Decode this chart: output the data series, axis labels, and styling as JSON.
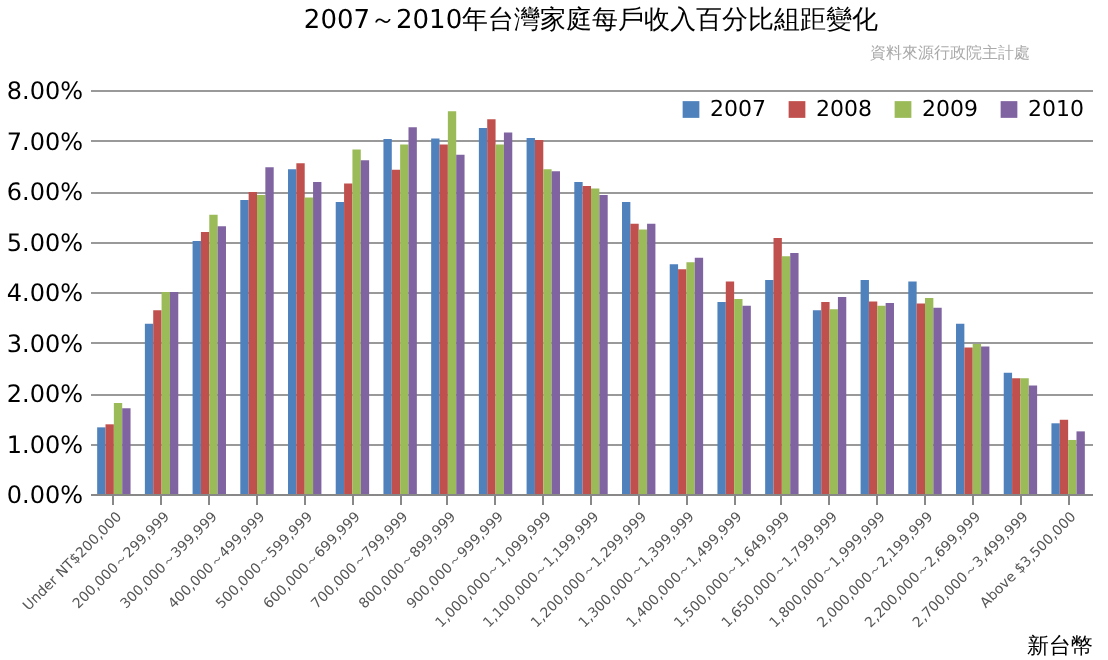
{
  "chart_data": {
    "type": "bar",
    "title": "2007～2010年台灣家庭每戶收入百分比組距變化",
    "xlabel": "新台幣",
    "annotations": [
      "資料來源行政院主計處"
    ],
    "categories": [
      "Under NT$200,000",
      "200,000～299,999",
      "300,000～399,999",
      "400,000～499,999",
      "500,000～599,999",
      "600,000～699,999",
      "700,000～799,999",
      "800,000～899,999",
      "900,000～999,999",
      "1,000,000～1,099,999",
      "1,100,000～1,199,999",
      "1,200,000～1,299,999",
      "1,300,000～1,399,999",
      "1,400,000～1,499,999",
      "1,500,000～1,649,999",
      "1,650,000～1,799,999",
      "1,800,000～1,999,999",
      "2,000,000～2,199,999",
      "2,200,000～2,699,999",
      "2,700,000～3,499,999",
      "Above $3,500,000"
    ],
    "series": [
      {
        "name": "2007",
        "color": "#4f81bd",
        "values": [
          1.32,
          3.37,
          5.01,
          5.82,
          6.43,
          5.78,
          7.03,
          7.04,
          7.25,
          7.05,
          6.18,
          5.78,
          4.55,
          3.8,
          4.24,
          3.64,
          4.24,
          4.21,
          3.37,
          2.4,
          1.4
        ]
      },
      {
        "name": "2008",
        "color": "#c0504d",
        "values": [
          1.38,
          3.64,
          5.19,
          5.98,
          6.55,
          6.15,
          6.42,
          6.92,
          7.42,
          7.01,
          6.1,
          5.35,
          4.45,
          4.21,
          5.07,
          3.8,
          3.81,
          3.77,
          2.9,
          2.29,
          1.47
        ]
      },
      {
        "name": "2009",
        "color": "#9bbb59",
        "values": [
          1.8,
          4.0,
          5.53,
          5.92,
          5.87,
          6.82,
          6.92,
          7.58,
          6.92,
          6.43,
          6.05,
          5.24,
          4.59,
          3.86,
          4.71,
          3.66,
          3.73,
          3.88,
          2.97,
          2.29,
          1.07
        ]
      },
      {
        "name": "2010",
        "color": "#8064a2",
        "values": [
          1.7,
          4.0,
          5.3,
          6.47,
          6.18,
          6.61,
          7.26,
          6.72,
          7.16,
          6.39,
          5.92,
          5.35,
          4.68,
          3.73,
          4.77,
          3.9,
          3.78,
          3.69,
          2.92,
          2.15,
          1.24
        ]
      }
    ],
    "ylim": [
      0,
      8
    ],
    "yticks": [
      {
        "value": 0,
        "label": "0.00%"
      },
      {
        "value": 1,
        "label": "1.00%"
      },
      {
        "value": 2,
        "label": "2.00%"
      },
      {
        "value": 3,
        "label": "3.00%"
      },
      {
        "value": 4,
        "label": "4.00%"
      },
      {
        "value": 5,
        "label": "5.00%"
      },
      {
        "value": 6,
        "label": "6.00%"
      },
      {
        "value": 7,
        "label": "7.00%"
      },
      {
        "value": 8,
        "label": "8.00%"
      }
    ],
    "grid": "y",
    "legend": "top right"
  }
}
